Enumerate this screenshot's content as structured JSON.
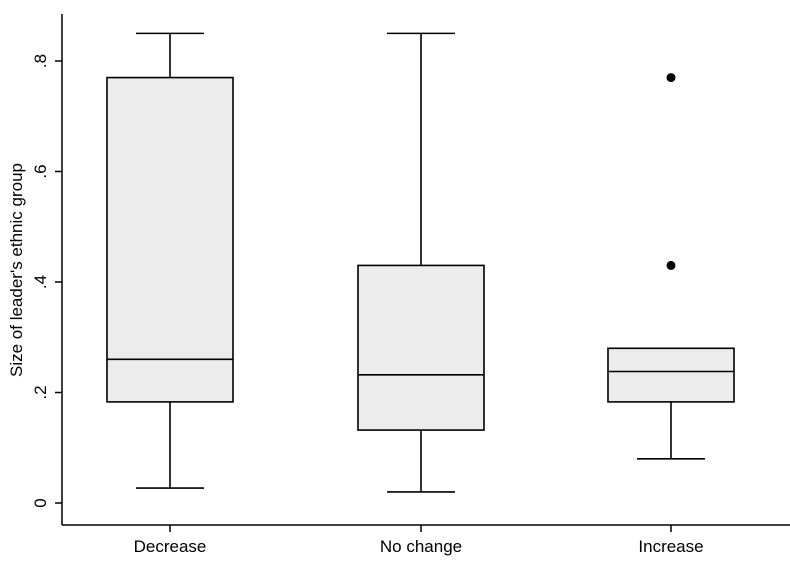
{
  "chart_data": {
    "type": "box",
    "title": "",
    "xlabel": "",
    "ylabel": "Size of leader's ethnic group",
    "ylim": [
      0,
      0.85
    ],
    "yticks": [
      0,
      0.2,
      0.4,
      0.6,
      0.8
    ],
    "ytick_labels": [
      "0",
      ".2",
      ".4",
      ".6",
      ".8"
    ],
    "grid": false,
    "box_fill": "#ececec",
    "line_color": "#000000",
    "categories": [
      "Decrease",
      "No change",
      "Increase"
    ],
    "boxes": [
      {
        "category": "Decrease",
        "whisker_low": 0.027,
        "q1": 0.183,
        "median": 0.26,
        "q3": 0.77,
        "whisker_high": 0.85,
        "outliers": []
      },
      {
        "category": "No change",
        "whisker_low": 0.02,
        "q1": 0.132,
        "median": 0.232,
        "q3": 0.43,
        "whisker_high": 0.85,
        "outliers": []
      },
      {
        "category": "Increase",
        "whisker_low": 0.08,
        "q1": 0.183,
        "median": 0.238,
        "q3": 0.28,
        "whisker_high": 0.28,
        "outliers": [
          0.43,
          0.77
        ]
      }
    ]
  }
}
